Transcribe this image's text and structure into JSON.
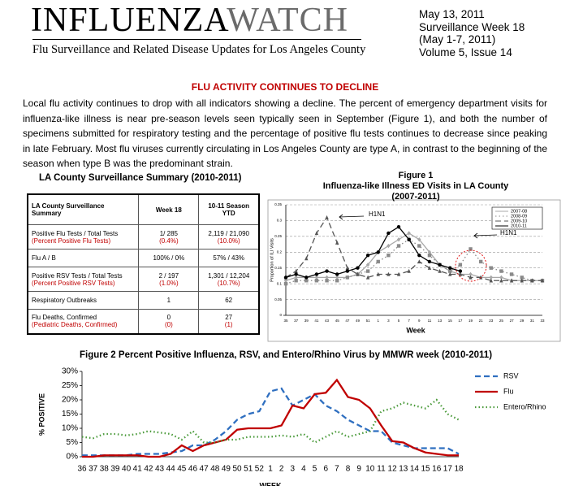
{
  "header": {
    "logo_left": "INFLUENZA",
    "logo_right": "WATCH",
    "tagline": "Flu Surveillance and Related Disease Updates for Los Angeles County",
    "date_lines": [
      "May 13, 2011",
      "Surveillance Week 18",
      "(May 1-7, 2011)",
      "Volume 5, Issue 14"
    ]
  },
  "article": {
    "heading": "FLU ACTIVITY CONTINUES TO DECLINE",
    "body": "Local flu activity continues to drop with all indicators showing a decline. The percent of emergency department visits for influenza-like illness is near pre-season levels seen typically seen in September (Figure 1), and both the number of specimens submitted for respiratory testing and the percentage of positive flu tests continues to decrease since peaking in late February. Most flu viruses currently circulating in Los Angeles County are type A, in contrast to the beginning of the season when type B was the predominant strain."
  },
  "summary_table": {
    "title": "LA County Surveillance Summary (2010-2011)",
    "columns": [
      "LA County Surveillance Summary",
      "Week 18",
      "10-11 Season YTD"
    ],
    "rows": [
      [
        [
          "Positive Flu Tests / Total Tests",
          "(Percent Positive Flu Tests)"
        ],
        [
          "1/ 285",
          "(0.4%)"
        ],
        [
          "2,119 / 21,090",
          "(10.0%)"
        ]
      ],
      [
        [
          "Flu A / B"
        ],
        [
          "100% / 0%"
        ],
        [
          "57% / 43%"
        ]
      ],
      [
        [
          "Positive RSV Tests / Total Tests",
          "(Percent Positive RSV Tests)"
        ],
        [
          "2 / 197",
          "(1.0%)"
        ],
        [
          "1,301 / 12,204",
          "(10.7%)"
        ]
      ],
      [
        [
          "Respiratory Outbreaks"
        ],
        [
          "1"
        ],
        [
          "62"
        ]
      ],
      [
        [
          "Flu Deaths, Confirmed",
          "(Pediatric Deaths, Confirmed)"
        ],
        [
          "0",
          "(0)"
        ],
        [
          "27",
          "(1)"
        ]
      ]
    ]
  },
  "chart_data": [
    {
      "type": "line",
      "title": "Figure 1",
      "subtitle": "Influenza-like Illness ED Visits in LA County",
      "period": "(2007-2011)",
      "x_label": "Week",
      "y_label": "Proportion of ILI Visits",
      "annotations": [
        "H1N1",
        "H1N1"
      ],
      "categories": [
        "35",
        "37",
        "39",
        "41",
        "43",
        "45",
        "47",
        "49",
        "51",
        "1",
        "3",
        "5",
        "7",
        "9",
        "11",
        "13",
        "15",
        "17",
        "19",
        "21",
        "23",
        "25",
        "27",
        "29",
        "31",
        "33"
      ],
      "series": [
        {
          "name": "2007-08",
          "color": "#a8a8a8",
          "dash": "solid",
          "marker": "diamond",
          "values": [
            0.11,
            0.12,
            0.12,
            0.12,
            0.12,
            0.12,
            0.12,
            0.13,
            0.16,
            0.2,
            0.22,
            0.24,
            0.26,
            0.24,
            0.2,
            0.16,
            0.14,
            0.13,
            0.13,
            0.12,
            0.12,
            0.12,
            0.11,
            0.11,
            0.11,
            0.11
          ]
        },
        {
          "name": "2008-09",
          "color": "#8a8a8a",
          "dash": "dotted",
          "marker": "square",
          "values": [
            0.1,
            0.11,
            0.11,
            0.11,
            0.11,
            0.11,
            0.12,
            0.13,
            0.14,
            0.17,
            0.19,
            0.22,
            0.24,
            0.22,
            0.19,
            0.16,
            0.14,
            0.16,
            0.21,
            0.17,
            0.15,
            0.14,
            0.13,
            0.12,
            0.11,
            0.11
          ]
        },
        {
          "name": "2009-10",
          "color": "#555555",
          "dash": "dashed",
          "marker": "triangle",
          "values": [
            0.12,
            0.14,
            0.18,
            0.26,
            0.31,
            0.23,
            0.15,
            0.13,
            0.12,
            0.13,
            0.13,
            0.13,
            0.14,
            0.17,
            0.15,
            0.14,
            0.13,
            0.13,
            0.12,
            0.12,
            0.11,
            0.11,
            0.11,
            0.11,
            0.11,
            0.11
          ]
        },
        {
          "name": "2010-11",
          "color": "#000000",
          "dash": "solid",
          "marker": "circle",
          "values": [
            0.12,
            0.13,
            0.12,
            0.13,
            0.14,
            0.13,
            0.14,
            0.15,
            0.19,
            0.2,
            0.26,
            0.28,
            0.24,
            0.19,
            0.17,
            0.16,
            0.15,
            0.14,
            null,
            null,
            null,
            null,
            null,
            null,
            null,
            null
          ]
        }
      ],
      "ylim": [
        0,
        0.35
      ],
      "yticks": [
        0,
        0.05,
        0.1,
        0.15,
        0.2,
        0.25,
        0.3,
        0.35
      ],
      "grid": true,
      "legend": "top-right"
    },
    {
      "type": "line",
      "title": "Figure 2 Percent Positive Influenza, RSV, and Entero/Rhino Virus by MMWR week (2010-2011)",
      "x_label": "WEEK",
      "y_label": "% POSITIVE",
      "categories": [
        "36",
        "37",
        "38",
        "39",
        "40",
        "41",
        "42",
        "43",
        "44",
        "45",
        "46",
        "47",
        "48",
        "49",
        "50",
        "51",
        "52",
        "1",
        "2",
        "3",
        "4",
        "5",
        "6",
        "7",
        "8",
        "9",
        "10",
        "11",
        "12",
        "13",
        "14",
        "15",
        "16",
        "17",
        "18"
      ],
      "series": [
        {
          "name": "RSV",
          "color": "#2f6fc0",
          "dash": "dashed",
          "values": [
            0.5,
            0.5,
            0.5,
            0.5,
            0.5,
            1,
            1,
            1,
            1.5,
            2,
            4,
            4,
            6,
            9,
            13,
            15,
            16,
            23,
            24,
            18,
            20,
            22,
            18,
            16,
            13,
            11,
            9,
            9,
            5,
            4,
            3,
            3,
            3,
            3,
            1
          ]
        },
        {
          "name": "Flu",
          "color": "#c00000",
          "dash": "solid",
          "values": [
            0,
            0,
            0.5,
            0.5,
            0.5,
            0.5,
            0,
            0,
            1,
            4,
            2,
            4,
            5,
            6,
            9.5,
            10,
            10,
            10,
            11,
            18,
            17,
            22,
            22.5,
            27,
            21,
            20,
            17,
            11,
            5.5,
            5,
            3,
            1.5,
            1,
            0.5,
            0.5
          ]
        },
        {
          "name": "Entero/Rhino",
          "color": "#4a9a3a",
          "dash": "dotted",
          "values": [
            7,
            6.5,
            8,
            8,
            7.5,
            8,
            9,
            8.5,
            8,
            6,
            9,
            5,
            5,
            6,
            6,
            7,
            7,
            7,
            7.5,
            7,
            8,
            5,
            7,
            9,
            7,
            8,
            9,
            16,
            17,
            19,
            18,
            17,
            20,
            15,
            13
          ]
        }
      ],
      "ylim": [
        0,
        30
      ],
      "yticks": [
        {
          "value": 0,
          "label": "0%"
        },
        {
          "value": 5,
          "label": "5%"
        },
        {
          "value": 10,
          "label": "10%"
        },
        {
          "value": 15,
          "label": "15%"
        },
        {
          "value": 20,
          "label": "20%"
        },
        {
          "value": 25,
          "label": "25%"
        },
        {
          "value": 30,
          "label": "30%"
        }
      ],
      "grid": false,
      "legend": "right"
    }
  ]
}
